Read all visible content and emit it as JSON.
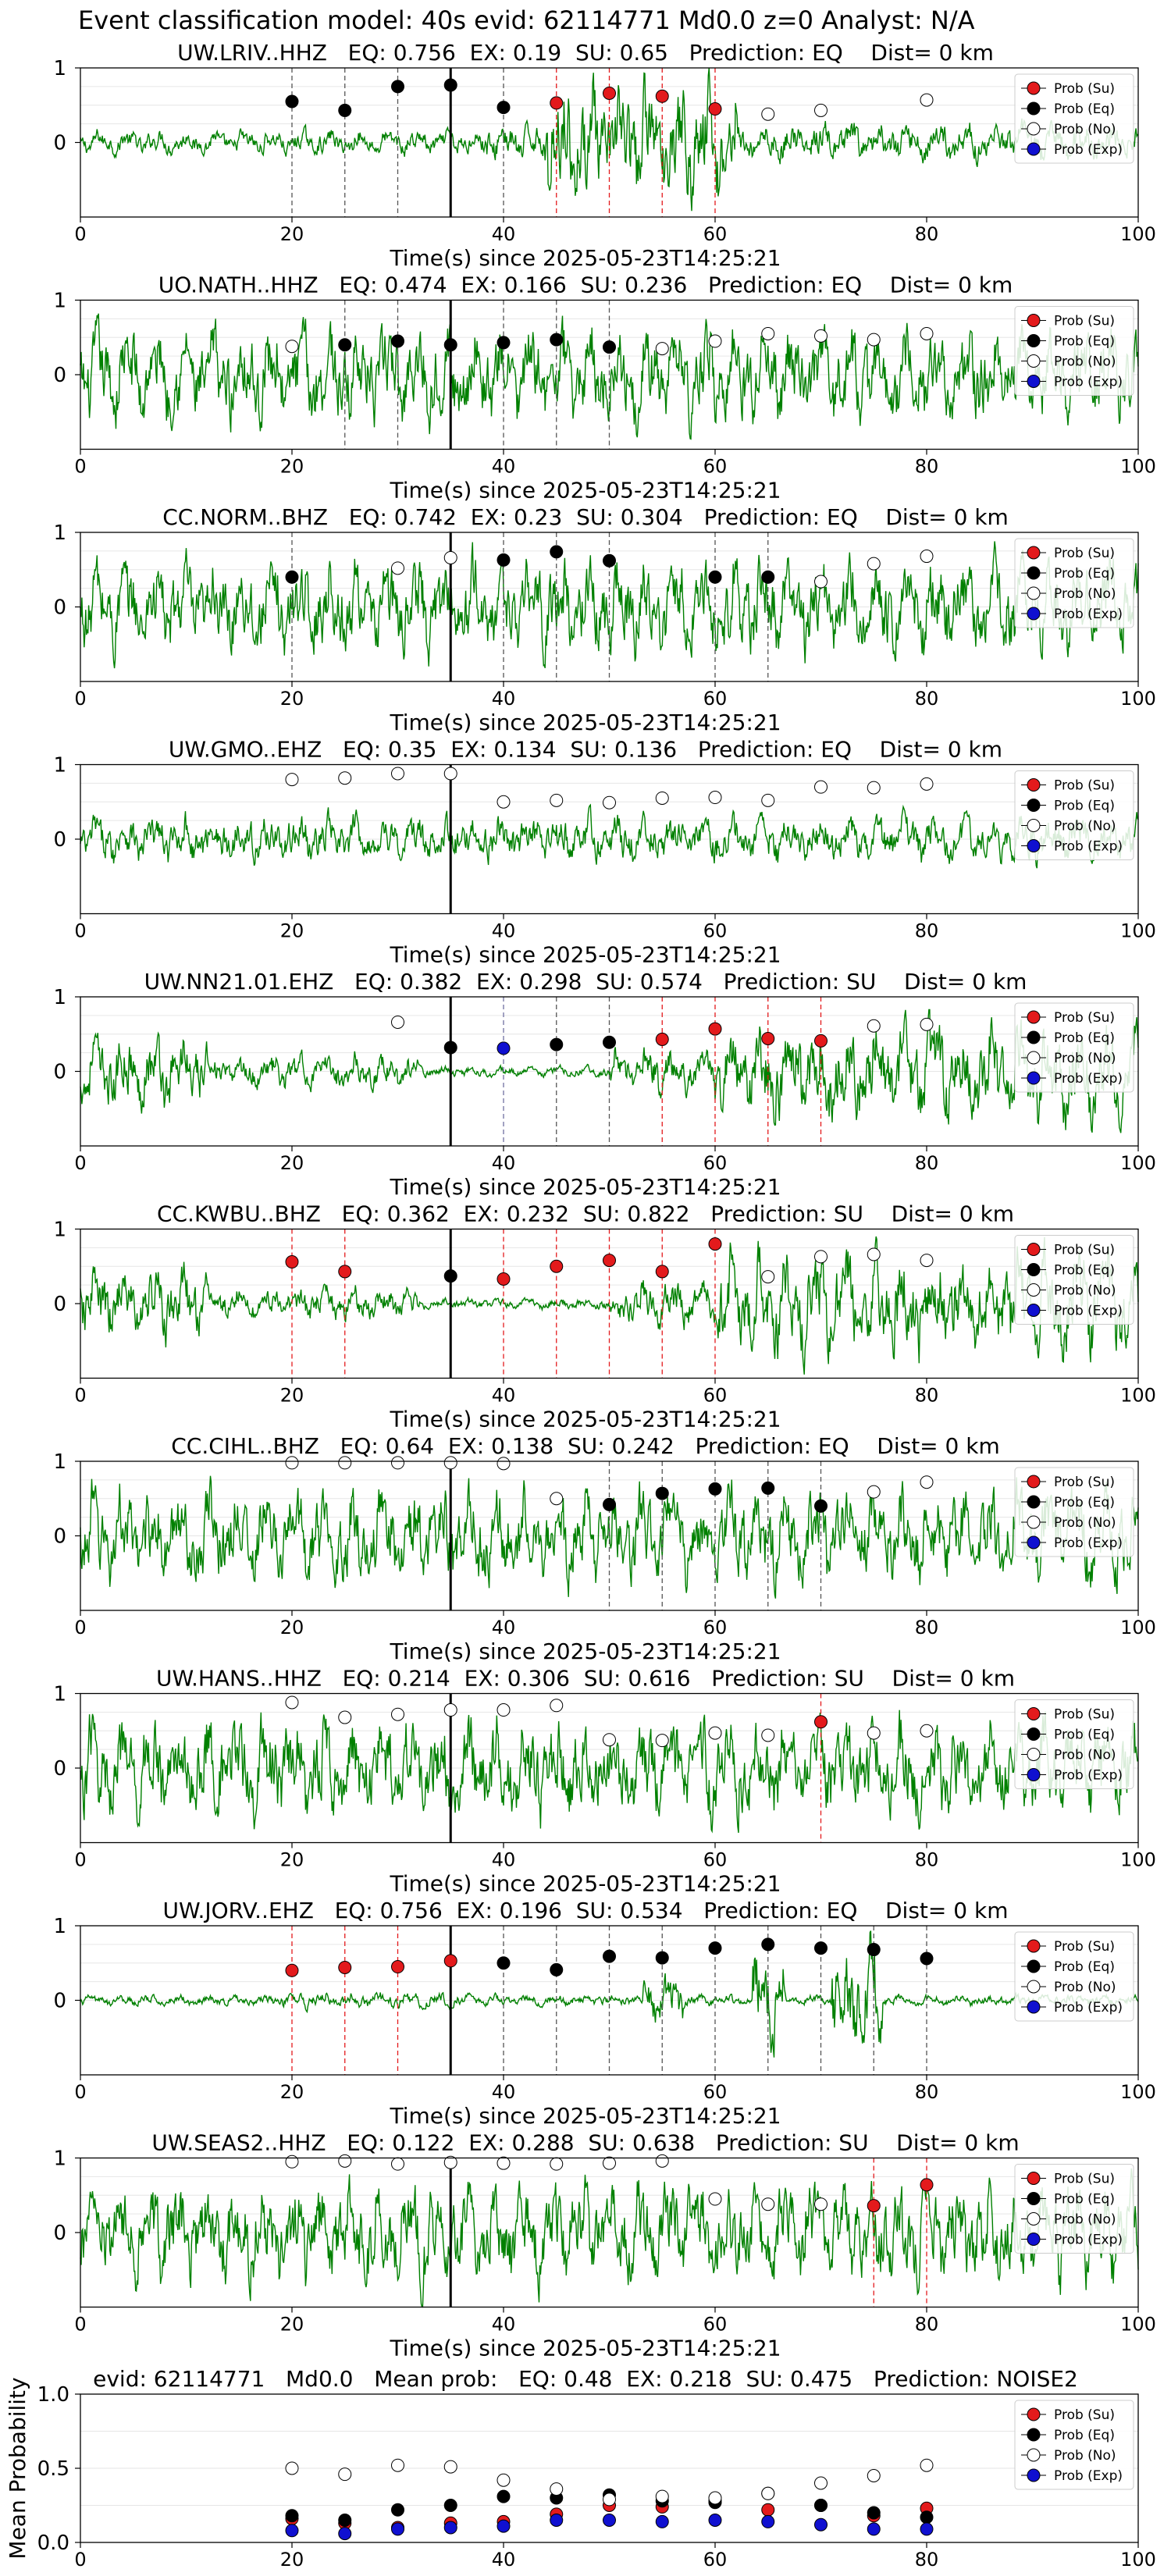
{
  "suptitle": "Event classification model: 40s evid: 62114771 Md0.0 z=0 Analyst: N/A",
  "legend_labels": [
    "Prob (Su)",
    "Prob (Eq)",
    "Prob (No)",
    "Prob (Exp)"
  ],
  "colors": {
    "trace": "#008000",
    "su": "#e31a1c",
    "eq": "#000000",
    "no": "#ffffff",
    "exp": "#1010d0",
    "onset": "#000000",
    "vline_eq": "#555555",
    "vline_su": "#e31a1c",
    "vline_exp": "#7070a0"
  },
  "chart_data": [
    {
      "type": "line",
      "panel": "waveform",
      "title": "UW.LRIV..HHZ   EQ: 0.756  EX: 0.19  SU: 0.65   Prediction: EQ    Dist= 0 km",
      "xlabel": "Time(s) since 2025-05-23T14:25:21",
      "xlim": [
        0,
        100
      ],
      "ylim": [
        -1,
        1
      ],
      "xticks": [
        0,
        20,
        40,
        60,
        80,
        100
      ],
      "yticks": [
        0,
        1
      ],
      "grid": true,
      "legend": "right",
      "onset": 35,
      "trace_style": "emergent-burst",
      "points": [
        {
          "t": 20,
          "p": 0.55,
          "c": "eq"
        },
        {
          "t": 25,
          "p": 0.43,
          "c": "eq"
        },
        {
          "t": 30,
          "p": 0.75,
          "c": "eq"
        },
        {
          "t": 35,
          "p": 0.77,
          "c": "eq"
        },
        {
          "t": 40,
          "p": 0.47,
          "c": "eq"
        },
        {
          "t": 45,
          "p": 0.53,
          "c": "su"
        },
        {
          "t": 50,
          "p": 0.66,
          "c": "su"
        },
        {
          "t": 55,
          "p": 0.62,
          "c": "su"
        },
        {
          "t": 60,
          "p": 0.45,
          "c": "su"
        },
        {
          "t": 65,
          "p": 0.38,
          "c": "no"
        },
        {
          "t": 70,
          "p": 0.43,
          "c": "no"
        },
        {
          "t": 80,
          "p": 0.57,
          "c": "no"
        }
      ]
    },
    {
      "type": "line",
      "panel": "waveform",
      "title": "UO.NATH..HHZ   EQ: 0.474  EX: 0.166  SU: 0.236   Prediction: EQ    Dist= 0 km",
      "xlabel": "Time(s) since 2025-05-23T14:25:21",
      "xlim": [
        0,
        100
      ],
      "ylim": [
        -1,
        1
      ],
      "xticks": [
        0,
        20,
        40,
        60,
        80,
        100
      ],
      "yticks": [
        0,
        1
      ],
      "grid": true,
      "legend": "right",
      "onset": 35,
      "trace_style": "noise-high",
      "points": [
        {
          "t": 20,
          "p": 0.38,
          "c": "no"
        },
        {
          "t": 25,
          "p": 0.4,
          "c": "eq"
        },
        {
          "t": 30,
          "p": 0.45,
          "c": "eq"
        },
        {
          "t": 35,
          "p": 0.4,
          "c": "eq"
        },
        {
          "t": 40,
          "p": 0.43,
          "c": "eq"
        },
        {
          "t": 45,
          "p": 0.47,
          "c": "eq"
        },
        {
          "t": 50,
          "p": 0.37,
          "c": "eq"
        },
        {
          "t": 55,
          "p": 0.35,
          "c": "no"
        },
        {
          "t": 60,
          "p": 0.45,
          "c": "no"
        },
        {
          "t": 65,
          "p": 0.55,
          "c": "no"
        },
        {
          "t": 70,
          "p": 0.52,
          "c": "no"
        },
        {
          "t": 75,
          "p": 0.47,
          "c": "no"
        },
        {
          "t": 80,
          "p": 0.55,
          "c": "no"
        }
      ]
    },
    {
      "type": "line",
      "panel": "waveform",
      "title": "CC.NORM..BHZ   EQ: 0.742  EX: 0.23  SU: 0.304   Prediction: EQ    Dist= 0 km",
      "xlabel": "Time(s) since 2025-05-23T14:25:21",
      "xlim": [
        0,
        100
      ],
      "ylim": [
        -1,
        1
      ],
      "xticks": [
        0,
        20,
        40,
        60,
        80,
        100
      ],
      "yticks": [
        0,
        1
      ],
      "grid": true,
      "legend": "right",
      "onset": 35,
      "trace_style": "noise-high",
      "points": [
        {
          "t": 20,
          "p": 0.4,
          "c": "eq"
        },
        {
          "t": 30,
          "p": 0.52,
          "c": "no"
        },
        {
          "t": 35,
          "p": 0.66,
          "c": "no"
        },
        {
          "t": 40,
          "p": 0.63,
          "c": "eq"
        },
        {
          "t": 45,
          "p": 0.74,
          "c": "eq"
        },
        {
          "t": 50,
          "p": 0.62,
          "c": "eq"
        },
        {
          "t": 60,
          "p": 0.4,
          "c": "eq"
        },
        {
          "t": 65,
          "p": 0.4,
          "c": "eq"
        },
        {
          "t": 70,
          "p": 0.34,
          "c": "no"
        },
        {
          "t": 75,
          "p": 0.58,
          "c": "no"
        },
        {
          "t": 80,
          "p": 0.68,
          "c": "no"
        }
      ]
    },
    {
      "type": "line",
      "panel": "waveform",
      "title": "UW.GMO..EHZ   EQ: 0.35  EX: 0.134  SU: 0.136   Prediction: EQ    Dist= 0 km",
      "xlabel": "Time(s) since 2025-05-23T14:25:21",
      "xlim": [
        0,
        100
      ],
      "ylim": [
        -1,
        1
      ],
      "xticks": [
        0,
        20,
        40,
        60,
        80,
        100
      ],
      "yticks": [
        0,
        1
      ],
      "grid": true,
      "legend": "right",
      "onset": 35,
      "trace_style": "noise-mid",
      "points": [
        {
          "t": 20,
          "p": 0.8,
          "c": "no"
        },
        {
          "t": 25,
          "p": 0.82,
          "c": "no"
        },
        {
          "t": 30,
          "p": 0.88,
          "c": "no"
        },
        {
          "t": 35,
          "p": 0.88,
          "c": "no"
        },
        {
          "t": 40,
          "p": 0.5,
          "c": "no"
        },
        {
          "t": 45,
          "p": 0.52,
          "c": "no"
        },
        {
          "t": 50,
          "p": 0.49,
          "c": "no"
        },
        {
          "t": 55,
          "p": 0.55,
          "c": "no"
        },
        {
          "t": 60,
          "p": 0.56,
          "c": "no"
        },
        {
          "t": 65,
          "p": 0.52,
          "c": "no"
        },
        {
          "t": 70,
          "p": 0.7,
          "c": "no"
        },
        {
          "t": 75,
          "p": 0.69,
          "c": "no"
        },
        {
          "t": 80,
          "p": 0.74,
          "c": "no"
        }
      ]
    },
    {
      "type": "line",
      "panel": "waveform",
      "title": "UW.NN21.01.EHZ   EQ: 0.382  EX: 0.298  SU: 0.574   Prediction: SU    Dist= 0 km",
      "xlabel": "Time(s) since 2025-05-23T14:25:21",
      "xlim": [
        0,
        100
      ],
      "ylim": [
        -1,
        1
      ],
      "xticks": [
        0,
        20,
        40,
        60,
        80,
        100
      ],
      "yticks": [
        0,
        1
      ],
      "grid": true,
      "legend": "right",
      "onset": 35,
      "trace_style": "quiet-then-burst",
      "points": [
        {
          "t": 30,
          "p": 0.66,
          "c": "no"
        },
        {
          "t": 35,
          "p": 0.32,
          "c": "eq"
        },
        {
          "t": 40,
          "p": 0.31,
          "c": "exp"
        },
        {
          "t": 45,
          "p": 0.36,
          "c": "eq"
        },
        {
          "t": 50,
          "p": 0.39,
          "c": "eq"
        },
        {
          "t": 55,
          "p": 0.43,
          "c": "su"
        },
        {
          "t": 60,
          "p": 0.57,
          "c": "su"
        },
        {
          "t": 65,
          "p": 0.44,
          "c": "su"
        },
        {
          "t": 70,
          "p": 0.41,
          "c": "su"
        },
        {
          "t": 75,
          "p": 0.61,
          "c": "no"
        },
        {
          "t": 80,
          "p": 0.63,
          "c": "no"
        }
      ]
    },
    {
      "type": "line",
      "panel": "waveform",
      "title": "CC.KWBU..BHZ   EQ: 0.362  EX: 0.232  SU: 0.822   Prediction: SU    Dist= 0 km",
      "xlabel": "Time(s) since 2025-05-23T14:25:21",
      "xlim": [
        0,
        100
      ],
      "ylim": [
        -1,
        1
      ],
      "xticks": [
        0,
        20,
        40,
        60,
        80,
        100
      ],
      "yticks": [
        0,
        1
      ],
      "grid": true,
      "legend": "right",
      "onset": 35,
      "trace_style": "quiet-then-burst",
      "points": [
        {
          "t": 20,
          "p": 0.56,
          "c": "su"
        },
        {
          "t": 25,
          "p": 0.43,
          "c": "su"
        },
        {
          "t": 35,
          "p": 0.37,
          "c": "eq"
        },
        {
          "t": 40,
          "p": 0.33,
          "c": "su"
        },
        {
          "t": 45,
          "p": 0.5,
          "c": "su"
        },
        {
          "t": 50,
          "p": 0.58,
          "c": "su"
        },
        {
          "t": 55,
          "p": 0.43,
          "c": "su"
        },
        {
          "t": 60,
          "p": 0.8,
          "c": "su"
        },
        {
          "t": 65,
          "p": 0.36,
          "c": "no"
        },
        {
          "t": 70,
          "p": 0.63,
          "c": "no"
        },
        {
          "t": 75,
          "p": 0.66,
          "c": "no"
        },
        {
          "t": 80,
          "p": 0.58,
          "c": "no"
        }
      ]
    },
    {
      "type": "line",
      "panel": "waveform",
      "title": "CC.CIHL..BHZ   EQ: 0.64  EX: 0.138  SU: 0.242   Prediction: EQ    Dist= 0 km",
      "xlabel": "Time(s) since 2025-05-23T14:25:21",
      "xlim": [
        0,
        100
      ],
      "ylim": [
        -1,
        1
      ],
      "xticks": [
        0,
        20,
        40,
        60,
        80,
        100
      ],
      "yticks": [
        0,
        1
      ],
      "grid": true,
      "legend": "right",
      "onset": 35,
      "trace_style": "noise-high",
      "points": [
        {
          "t": 20,
          "p": 0.98,
          "c": "no"
        },
        {
          "t": 25,
          "p": 0.98,
          "c": "no"
        },
        {
          "t": 30,
          "p": 0.98,
          "c": "no"
        },
        {
          "t": 35,
          "p": 0.98,
          "c": "no"
        },
        {
          "t": 40,
          "p": 0.97,
          "c": "no"
        },
        {
          "t": 45,
          "p": 0.5,
          "c": "no"
        },
        {
          "t": 50,
          "p": 0.42,
          "c": "eq"
        },
        {
          "t": 55,
          "p": 0.57,
          "c": "eq"
        },
        {
          "t": 60,
          "p": 0.63,
          "c": "eq"
        },
        {
          "t": 65,
          "p": 0.64,
          "c": "eq"
        },
        {
          "t": 70,
          "p": 0.4,
          "c": "eq"
        },
        {
          "t": 75,
          "p": 0.59,
          "c": "no"
        },
        {
          "t": 80,
          "p": 0.72,
          "c": "no"
        }
      ]
    },
    {
      "type": "line",
      "panel": "waveform",
      "title": "UW.HANS..HHZ   EQ: 0.214  EX: 0.306  SU: 0.616   Prediction: SU    Dist= 0 km",
      "xlabel": "Time(s) since 2025-05-23T14:25:21",
      "xlim": [
        0,
        100
      ],
      "ylim": [
        -1,
        1
      ],
      "xticks": [
        0,
        20,
        40,
        60,
        80,
        100
      ],
      "yticks": [
        0,
        1
      ],
      "grid": true,
      "legend": "right",
      "onset": 35,
      "trace_style": "noise-sparse",
      "points": [
        {
          "t": 20,
          "p": 0.88,
          "c": "no"
        },
        {
          "t": 25,
          "p": 0.68,
          "c": "no"
        },
        {
          "t": 30,
          "p": 0.72,
          "c": "no"
        },
        {
          "t": 35,
          "p": 0.78,
          "c": "no"
        },
        {
          "t": 40,
          "p": 0.78,
          "c": "no"
        },
        {
          "t": 45,
          "p": 0.84,
          "c": "no"
        },
        {
          "t": 50,
          "p": 0.38,
          "c": "no"
        },
        {
          "t": 55,
          "p": 0.37,
          "c": "no"
        },
        {
          "t": 60,
          "p": 0.47,
          "c": "no"
        },
        {
          "t": 65,
          "p": 0.44,
          "c": "no"
        },
        {
          "t": 70,
          "p": 0.62,
          "c": "su"
        },
        {
          "t": 75,
          "p": 0.47,
          "c": "no"
        },
        {
          "t": 80,
          "p": 0.5,
          "c": "no"
        }
      ]
    },
    {
      "type": "line",
      "panel": "waveform",
      "title": "UW.JORV..EHZ   EQ: 0.756  EX: 0.196  SU: 0.534   Prediction: EQ    Dist= 0 km",
      "xlabel": "Time(s) since 2025-05-23T14:25:21",
      "xlim": [
        0,
        100
      ],
      "ylim": [
        -1,
        1
      ],
      "xticks": [
        0,
        20,
        40,
        60,
        80,
        100
      ],
      "yticks": [
        0,
        1
      ],
      "grid": true,
      "legend": "right",
      "onset": 35,
      "trace_style": "quiet-with-spikes",
      "points": [
        {
          "t": 20,
          "p": 0.4,
          "c": "su"
        },
        {
          "t": 25,
          "p": 0.44,
          "c": "su"
        },
        {
          "t": 30,
          "p": 0.45,
          "c": "su"
        },
        {
          "t": 35,
          "p": 0.53,
          "c": "su"
        },
        {
          "t": 40,
          "p": 0.5,
          "c": "eq"
        },
        {
          "t": 45,
          "p": 0.41,
          "c": "eq"
        },
        {
          "t": 50,
          "p": 0.59,
          "c": "eq"
        },
        {
          "t": 55,
          "p": 0.57,
          "c": "eq"
        },
        {
          "t": 60,
          "p": 0.7,
          "c": "eq"
        },
        {
          "t": 65,
          "p": 0.75,
          "c": "eq"
        },
        {
          "t": 70,
          "p": 0.7,
          "c": "eq"
        },
        {
          "t": 75,
          "p": 0.68,
          "c": "eq"
        },
        {
          "t": 80,
          "p": 0.56,
          "c": "eq"
        }
      ]
    },
    {
      "type": "line",
      "panel": "waveform",
      "title": "UW.SEAS2..HHZ   EQ: 0.122  EX: 0.288  SU: 0.638   Prediction: SU    Dist= 0 km",
      "xlabel": "Time(s) since 2025-05-23T14:25:21",
      "xlim": [
        0,
        100
      ],
      "ylim": [
        -1,
        1
      ],
      "xticks": [
        0,
        20,
        40,
        60,
        80,
        100
      ],
      "yticks": [
        0,
        1
      ],
      "grid": true,
      "legend": "right",
      "onset": 35,
      "trace_style": "noise-sparse",
      "points": [
        {
          "t": 20,
          "p": 0.95,
          "c": "no"
        },
        {
          "t": 25,
          "p": 0.96,
          "c": "no"
        },
        {
          "t": 30,
          "p": 0.92,
          "c": "no"
        },
        {
          "t": 35,
          "p": 0.94,
          "c": "no"
        },
        {
          "t": 40,
          "p": 0.93,
          "c": "no"
        },
        {
          "t": 45,
          "p": 0.92,
          "c": "no"
        },
        {
          "t": 50,
          "p": 0.93,
          "c": "no"
        },
        {
          "t": 55,
          "p": 0.96,
          "c": "no"
        },
        {
          "t": 60,
          "p": 0.45,
          "c": "no"
        },
        {
          "t": 65,
          "p": 0.38,
          "c": "no"
        },
        {
          "t": 70,
          "p": 0.38,
          "c": "no"
        },
        {
          "t": 75,
          "p": 0.36,
          "c": "su"
        },
        {
          "t": 80,
          "p": 0.64,
          "c": "su"
        }
      ]
    },
    {
      "type": "scatter",
      "panel": "summary",
      "title": "evid: 62114771   Md0.0   Mean prob:   EQ: 0.48  EX: 0.218  SU: 0.475   Prediction: NOISE2",
      "xlabel": "",
      "ylabel": "Mean Probability",
      "xlim": [
        0,
        100
      ],
      "ylim": [
        0,
        1
      ],
      "xticks": [
        0,
        20,
        40,
        60,
        80,
        100
      ],
      "yticks": [
        0.0,
        0.5,
        1.0
      ],
      "grid": true,
      "legend": "right",
      "x": [
        20,
        25,
        30,
        35,
        40,
        45,
        50,
        55,
        60,
        65,
        70,
        75,
        80
      ],
      "series": [
        {
          "name": "Prob (Su)",
          "c": "su",
          "values": [
            0.16,
            0.13,
            0.1,
            0.13,
            0.14,
            0.19,
            0.25,
            0.24,
            0.28,
            0.22,
            0.25,
            0.18,
            0.23
          ]
        },
        {
          "name": "Prob (Eq)",
          "c": "eq",
          "values": [
            0.18,
            0.15,
            0.22,
            0.25,
            0.31,
            0.3,
            0.32,
            0.28,
            0.27,
            0.33,
            0.25,
            0.2,
            0.17
          ]
        },
        {
          "name": "Prob (No)",
          "c": "no",
          "values": [
            0.5,
            0.46,
            0.52,
            0.51,
            0.42,
            0.36,
            0.29,
            0.31,
            0.3,
            0.33,
            0.4,
            0.45,
            0.52
          ]
        },
        {
          "name": "Prob (Exp)",
          "c": "exp",
          "values": [
            0.08,
            0.06,
            0.09,
            0.1,
            0.11,
            0.15,
            0.15,
            0.14,
            0.15,
            0.14,
            0.12,
            0.09,
            0.09
          ]
        }
      ]
    }
  ]
}
